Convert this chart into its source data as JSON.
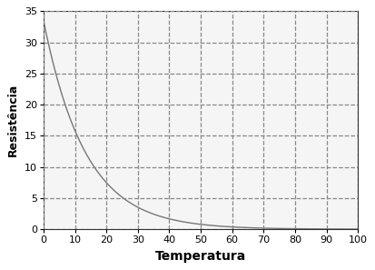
{
  "title": "",
  "xlabel": "Temperatura",
  "ylabel": "Resistência",
  "xlim": [
    0,
    100
  ],
  "ylim": [
    0,
    35
  ],
  "xticks": [
    0,
    10,
    20,
    30,
    40,
    50,
    60,
    70,
    80,
    90,
    100
  ],
  "yticks": [
    0,
    5,
    10,
    15,
    20,
    25,
    30,
    35
  ],
  "grid_color": "#888888",
  "grid_linestyle": "--",
  "grid_linewidth": 0.9,
  "line_color": "#777777",
  "line_width": 1.0,
  "plot_bg_color": "#f5f5f5",
  "fig_bg_color": "#ffffff",
  "curve_a": 33.5,
  "curve_b": 0.075,
  "xlabel_fontsize": 10,
  "ylabel_fontsize": 9,
  "tick_fontsize": 8,
  "xlabel_fontweight": "bold",
  "ylabel_fontweight": "bold"
}
